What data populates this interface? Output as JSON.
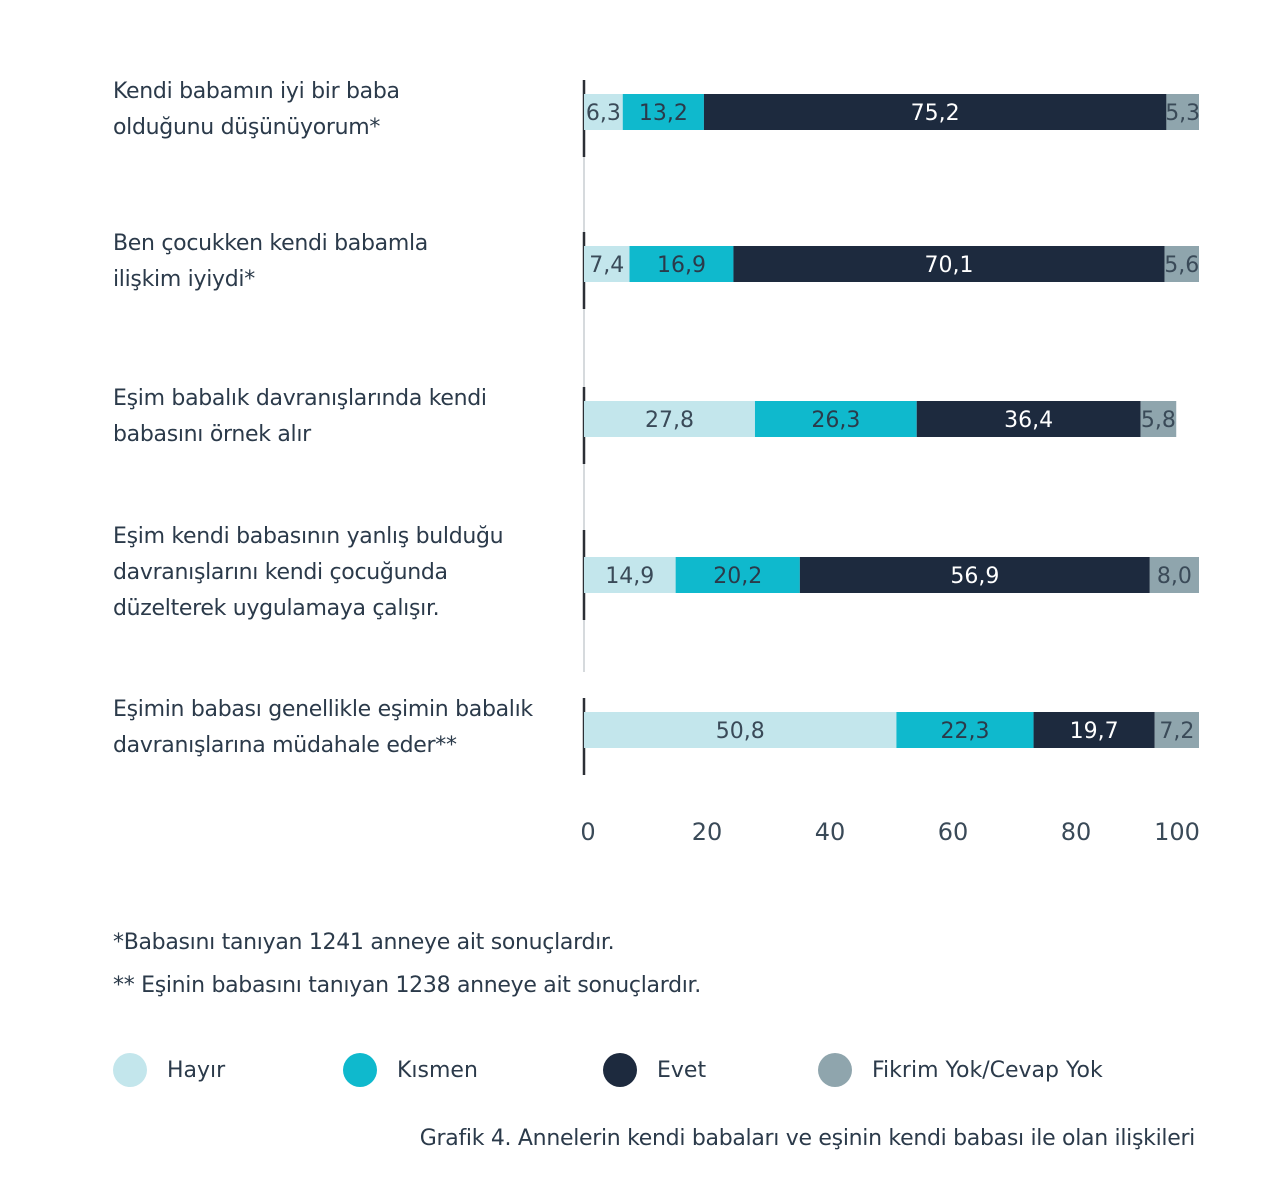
{
  "chart_data": {
    "type": "bar",
    "orientation": "horizontal",
    "stacked": true,
    "categories": [
      "Kendi babamın iyi bir baba olduğunu düşünüyorum*",
      "Ben çocukken kendi babamla ilişkim iyiydi*",
      "Eşim babalık davranışlarında kendi babasını örnek alır",
      "Eşim kendi babasının yanlış bulduğu davranışlarını kendi çocuğunda düzelterek uygulamaya çalışır.",
      "Eşimin babası genellikle eşimin babalık davranışlarına müdahale eder**"
    ],
    "category_lines": [
      [
        "Kendi babamın iyi bir baba",
        "olduğunu düşünüyorum*"
      ],
      [
        "Ben çocukken kendi babamla",
        "ilişkim iyiydi*"
      ],
      [
        "Eşim babalık davranışlarında kendi",
        "babasını örnek alır"
      ],
      [
        "Eşim kendi babasının yanlış bulduğu",
        "davranışlarını kendi çocuğunda",
        "düzelterek uygulamaya çalışır."
      ],
      [
        "Eşimin babası genellikle eşimin babalık",
        "davranışlarına müdahale eder**"
      ]
    ],
    "series": [
      {
        "name": "Hayır",
        "color": "#c3e6ec",
        "label_color": "#3a4a58",
        "values": [
          6.3,
          7.4,
          27.8,
          14.9,
          50.8
        ],
        "labels": [
          "6,3",
          "7,4",
          "27,8",
          "14,9",
          "50,8"
        ]
      },
      {
        "name": "Kısmen",
        "color": "#0fb9cd",
        "label_color": "#2b3a4a",
        "values": [
          13.2,
          16.9,
          26.3,
          20.2,
          22.3
        ],
        "labels": [
          "13,2",
          "16,9",
          "26,3",
          "20,2",
          "22,3"
        ]
      },
      {
        "name": "Evet",
        "color": "#1d2a3e",
        "label_color": "#ffffff",
        "values": [
          75.2,
          70.1,
          36.4,
          56.9,
          19.7
        ],
        "labels": [
          "75,2",
          "70,1",
          "36,4",
          "56,9",
          "19,7"
        ]
      },
      {
        "name": "Fikrim Yok/Cevap Yok",
        "color": "#8fa5ad",
        "label_color": "#3a4a58",
        "values": [
          5.3,
          5.6,
          5.8,
          8.0,
          7.2
        ],
        "labels": [
          "5,3",
          "5,6",
          "5,8",
          "8,0",
          "7,2"
        ]
      }
    ],
    "xlim": [
      0,
      100
    ],
    "xticks": [
      "0",
      "20",
      "40",
      "60",
      "80",
      "100"
    ],
    "legend_position": "bottom",
    "grid": false,
    "title": "Grafik 4. Annelerin kendi babaları ve eşinin kendi babası ile olan ilişkileri"
  },
  "footnotes": [
    "*Babasını tanıyan 1241 anneye ait sonuçlardır.",
    "** Eşinin babasını tanıyan 1238 anneye ait sonuçlardır."
  ]
}
